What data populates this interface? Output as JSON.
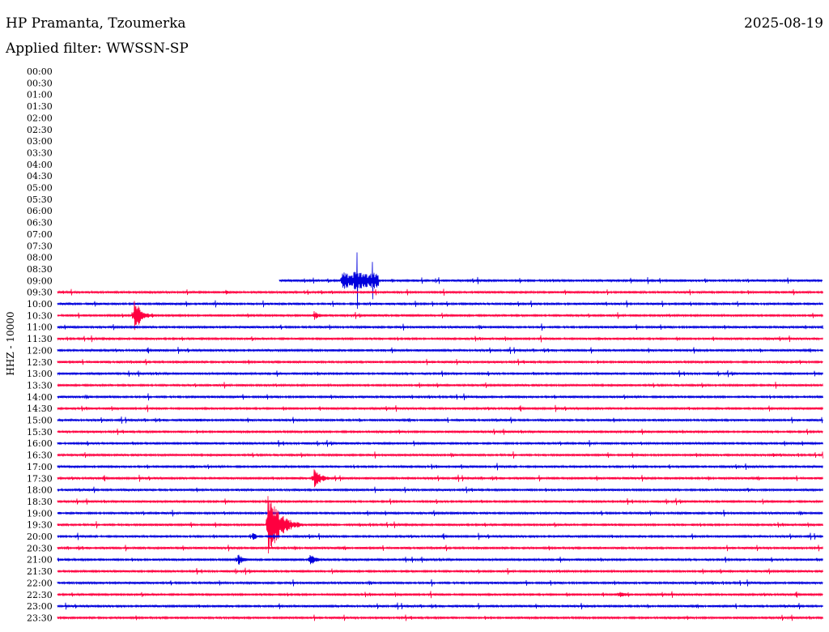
{
  "header": {
    "station": "HP Pramanta, Tzoumerka",
    "date": "2025-08-19",
    "filter": "Applied filter: WWSSN-SP"
  },
  "chart_data": {
    "type": "helicorder",
    "ylabel": "HHZ - 10000",
    "time_labels": [
      "00:00",
      "00:30",
      "01:00",
      "01:30",
      "02:00",
      "02:30",
      "03:00",
      "03:30",
      "04:00",
      "04:30",
      "05:00",
      "05:30",
      "06:00",
      "06:30",
      "07:00",
      "07:30",
      "08:00",
      "08:30",
      "09:00",
      "09:30",
      "10:00",
      "10:30",
      "11:00",
      "11:30",
      "12:00",
      "12:30",
      "13:00",
      "13:30",
      "14:00",
      "14:30",
      "15:00",
      "15:30",
      "16:00",
      "16:30",
      "17:00",
      "17:30",
      "18:00",
      "18:30",
      "19:00",
      "19:30",
      "20:00",
      "20:30",
      "21:00",
      "21:30",
      "22:00",
      "22:30",
      "23:00",
      "23:30"
    ],
    "row_colors": [
      "#0000dd",
      "#ff0040"
    ],
    "data_start_label": "09:00",
    "data_start_fraction": 0.29,
    "events": [
      {
        "row": "09:00",
        "position": 0.37,
        "amplitude": 42,
        "width": 0.05,
        "type": "spikes"
      },
      {
        "row": "09:30",
        "position": 0.22,
        "amplitude": 4,
        "width": 0.01,
        "type": "burst"
      },
      {
        "row": "10:30",
        "position": 0.1,
        "amplitude": 20,
        "width": 0.03,
        "type": "burst"
      },
      {
        "row": "10:30",
        "position": 0.335,
        "amplitude": 6,
        "width": 0.02,
        "type": "burst"
      },
      {
        "row": "12:00",
        "position": 0.13,
        "amplitude": 3,
        "width": 0.01,
        "type": "burst"
      },
      {
        "row": "15:00",
        "position": 0.18,
        "amplitude": 3,
        "width": 0.03,
        "type": "burst"
      },
      {
        "row": "16:30",
        "position": 0.935,
        "amplitude": 5,
        "width": 0.015,
        "type": "burst"
      },
      {
        "row": "17:00",
        "position": 0.175,
        "amplitude": 3,
        "width": 0.02,
        "type": "burst"
      },
      {
        "row": "17:30",
        "position": 0.335,
        "amplitude": 12,
        "width": 0.03,
        "type": "burst"
      },
      {
        "row": "19:30",
        "position": 0.275,
        "amplitude": 40,
        "width": 0.045,
        "type": "burst"
      },
      {
        "row": "20:00",
        "position": 0.255,
        "amplitude": 6,
        "width": 0.015,
        "type": "burst"
      },
      {
        "row": "21:00",
        "position": 0.235,
        "amplitude": 9,
        "width": 0.02,
        "type": "burst"
      },
      {
        "row": "21:00",
        "position": 0.33,
        "amplitude": 9,
        "width": 0.02,
        "type": "burst"
      },
      {
        "row": "22:30",
        "position": 0.735,
        "amplitude": 7,
        "width": 0.015,
        "type": "burst"
      }
    ]
  }
}
